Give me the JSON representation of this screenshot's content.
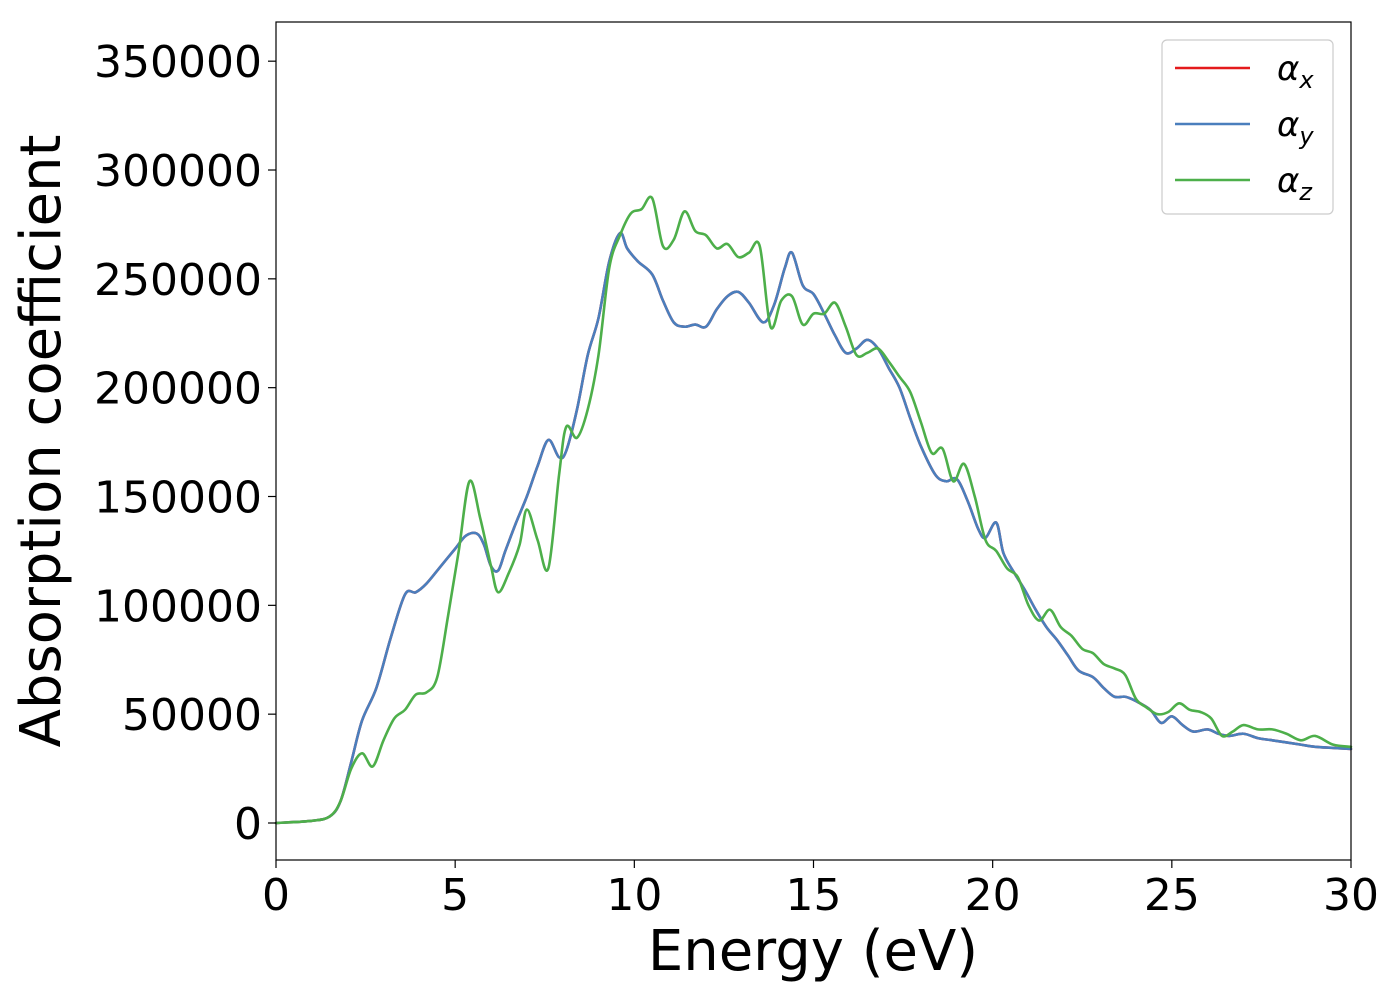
{
  "chart_data": {
    "type": "line",
    "title": "",
    "xlabel": "Energy (eV)",
    "ylabel": "Absorption coefficient",
    "xlim": [
      0,
      30
    ],
    "ylim": [
      -17000,
      368000
    ],
    "xticks": [
      0,
      5,
      10,
      15,
      20,
      25,
      30
    ],
    "yticks": [
      0,
      50000,
      100000,
      150000,
      200000,
      250000,
      300000,
      350000
    ],
    "grid": false,
    "legend_position": "top-right",
    "series": [
      {
        "name": "αx",
        "legend_base": "α",
        "legend_sub": "x",
        "color": "#e41a1c",
        "x": [
          0,
          1.0,
          1.5,
          1.8,
          2.1,
          2.4,
          2.8,
          3.2,
          3.6,
          3.9,
          4.2,
          4.6,
          5.0,
          5.3,
          5.6,
          5.8,
          6.0,
          6.2,
          6.4,
          6.7,
          7.0,
          7.3,
          7.6,
          7.9,
          8.1,
          8.4,
          8.7,
          9.0,
          9.3,
          9.6,
          9.8,
          10.1,
          10.5,
          10.8,
          11.1,
          11.4,
          11.7,
          12.0,
          12.3,
          12.6,
          12.9,
          13.2,
          13.6,
          13.9,
          14.2,
          14.4,
          14.7,
          15.0,
          15.3,
          15.6,
          15.9,
          16.2,
          16.5,
          16.8,
          17.1,
          17.4,
          17.7,
          18.0,
          18.4,
          18.7,
          19.0,
          19.3,
          19.6,
          19.8,
          20.1,
          20.3,
          20.6,
          20.9,
          21.2,
          21.5,
          21.8,
          22.1,
          22.4,
          22.8,
          23.1,
          23.4,
          23.7,
          24.0,
          24.4,
          24.7,
          25.0,
          25.3,
          25.6,
          26.0,
          26.3,
          26.6,
          27.0,
          27.4,
          27.8,
          28.2,
          28.6,
          29.0,
          29.5,
          30.0
        ],
        "y": [
          0,
          1000,
          3000,
          10000,
          28000,
          47000,
          62000,
          85000,
          105000,
          106000,
          110000,
          118000,
          126000,
          132000,
          133000,
          128000,
          118000,
          116000,
          125000,
          138000,
          150000,
          164000,
          176000,
          168000,
          171000,
          190000,
          215000,
          232000,
          258000,
          271000,
          264000,
          258000,
          252000,
          240000,
          230000,
          228000,
          229000,
          228000,
          236000,
          242000,
          244000,
          239000,
          230000,
          238000,
          255000,
          262000,
          247000,
          243000,
          234000,
          224000,
          216000,
          218000,
          222000,
          218000,
          209000,
          200000,
          186000,
          173000,
          160000,
          157000,
          158000,
          148000,
          135000,
          131000,
          138000,
          124000,
          115000,
          107000,
          98000,
          90000,
          84000,
          77000,
          70000,
          67000,
          62000,
          58000,
          58000,
          56000,
          52000,
          46000,
          49000,
          45000,
          42000,
          43000,
          41000,
          40000,
          41000,
          39000,
          38000,
          37000,
          36000,
          35000,
          34500,
          34000
        ]
      },
      {
        "name": "αy",
        "legend_base": "α",
        "legend_sub": "y",
        "color": "#4a7fbd",
        "x": [
          0,
          1.0,
          1.5,
          1.8,
          2.1,
          2.4,
          2.8,
          3.2,
          3.6,
          3.9,
          4.2,
          4.6,
          5.0,
          5.3,
          5.6,
          5.8,
          6.0,
          6.2,
          6.4,
          6.7,
          7.0,
          7.3,
          7.6,
          7.9,
          8.1,
          8.4,
          8.7,
          9.0,
          9.3,
          9.6,
          9.8,
          10.1,
          10.5,
          10.8,
          11.1,
          11.4,
          11.7,
          12.0,
          12.3,
          12.6,
          12.9,
          13.2,
          13.6,
          13.9,
          14.2,
          14.4,
          14.7,
          15.0,
          15.3,
          15.6,
          15.9,
          16.2,
          16.5,
          16.8,
          17.1,
          17.4,
          17.7,
          18.0,
          18.4,
          18.7,
          19.0,
          19.3,
          19.6,
          19.8,
          20.1,
          20.3,
          20.6,
          20.9,
          21.2,
          21.5,
          21.8,
          22.1,
          22.4,
          22.8,
          23.1,
          23.4,
          23.7,
          24.0,
          24.4,
          24.7,
          25.0,
          25.3,
          25.6,
          26.0,
          26.3,
          26.6,
          27.0,
          27.4,
          27.8,
          28.2,
          28.6,
          29.0,
          29.5,
          30.0
        ],
        "y": [
          0,
          1000,
          3000,
          10000,
          28000,
          47000,
          62000,
          85000,
          105000,
          106000,
          110000,
          118000,
          126000,
          132000,
          133000,
          128000,
          118000,
          116000,
          125000,
          138000,
          150000,
          164000,
          176000,
          168000,
          171000,
          190000,
          215000,
          232000,
          258000,
          271000,
          264000,
          258000,
          252000,
          240000,
          230000,
          228000,
          229000,
          228000,
          236000,
          242000,
          244000,
          239000,
          230000,
          238000,
          255000,
          262000,
          247000,
          243000,
          234000,
          224000,
          216000,
          218000,
          222000,
          218000,
          209000,
          200000,
          186000,
          173000,
          160000,
          157000,
          158000,
          148000,
          135000,
          131000,
          138000,
          124000,
          115000,
          107000,
          98000,
          90000,
          84000,
          77000,
          70000,
          67000,
          62000,
          58000,
          58000,
          56000,
          52000,
          46000,
          49000,
          45000,
          42000,
          43000,
          41000,
          40000,
          41000,
          39000,
          38000,
          37000,
          36000,
          35000,
          34500,
          34000
        ]
      },
      {
        "name": "αz",
        "legend_base": "α",
        "legend_sub": "z",
        "color": "#4daf4a",
        "x": [
          0,
          1.0,
          1.5,
          1.8,
          2.1,
          2.4,
          2.7,
          3.0,
          3.3,
          3.6,
          3.9,
          4.2,
          4.5,
          4.8,
          5.1,
          5.4,
          5.7,
          6.0,
          6.2,
          6.5,
          6.8,
          7.0,
          7.3,
          7.6,
          7.9,
          8.1,
          8.4,
          8.7,
          9.0,
          9.3,
          9.6,
          9.9,
          10.2,
          10.5,
          10.8,
          11.1,
          11.4,
          11.7,
          12.0,
          12.3,
          12.6,
          12.9,
          13.2,
          13.5,
          13.8,
          14.1,
          14.4,
          14.7,
          15.0,
          15.3,
          15.6,
          15.9,
          16.2,
          16.5,
          16.8,
          17.1,
          17.4,
          17.7,
          18.0,
          18.3,
          18.6,
          18.9,
          19.2,
          19.5,
          19.8,
          20.1,
          20.4,
          20.7,
          21.0,
          21.3,
          21.6,
          21.9,
          22.2,
          22.5,
          22.8,
          23.1,
          23.4,
          23.7,
          24.0,
          24.3,
          24.6,
          24.9,
          25.2,
          25.5,
          25.8,
          26.1,
          26.4,
          26.7,
          27.0,
          27.4,
          27.8,
          28.2,
          28.6,
          29.0,
          29.5,
          30.0
        ],
        "y": [
          0,
          1000,
          3000,
          10000,
          25000,
          32000,
          26000,
          38000,
          48000,
          52000,
          59000,
          60000,
          67000,
          95000,
          125000,
          157000,
          140000,
          118000,
          106000,
          115000,
          128000,
          144000,
          130000,
          117000,
          160000,
          182000,
          177000,
          190000,
          215000,
          255000,
          270000,
          280000,
          282000,
          287000,
          265000,
          268000,
          281000,
          272000,
          270000,
          264000,
          266000,
          260000,
          262000,
          265000,
          228000,
          240000,
          242000,
          229000,
          234000,
          234000,
          239000,
          228000,
          215000,
          216000,
          218000,
          212000,
          205000,
          198000,
          184000,
          170000,
          172000,
          157000,
          165000,
          150000,
          130000,
          125000,
          117000,
          113000,
          100000,
          93000,
          98000,
          90000,
          86000,
          80000,
          78000,
          73000,
          71000,
          68000,
          57000,
          53000,
          50000,
          51000,
          55000,
          52000,
          51000,
          48000,
          40000,
          42000,
          45000,
          43000,
          43000,
          41000,
          38000,
          40000,
          36000,
          35000
        ]
      }
    ]
  }
}
